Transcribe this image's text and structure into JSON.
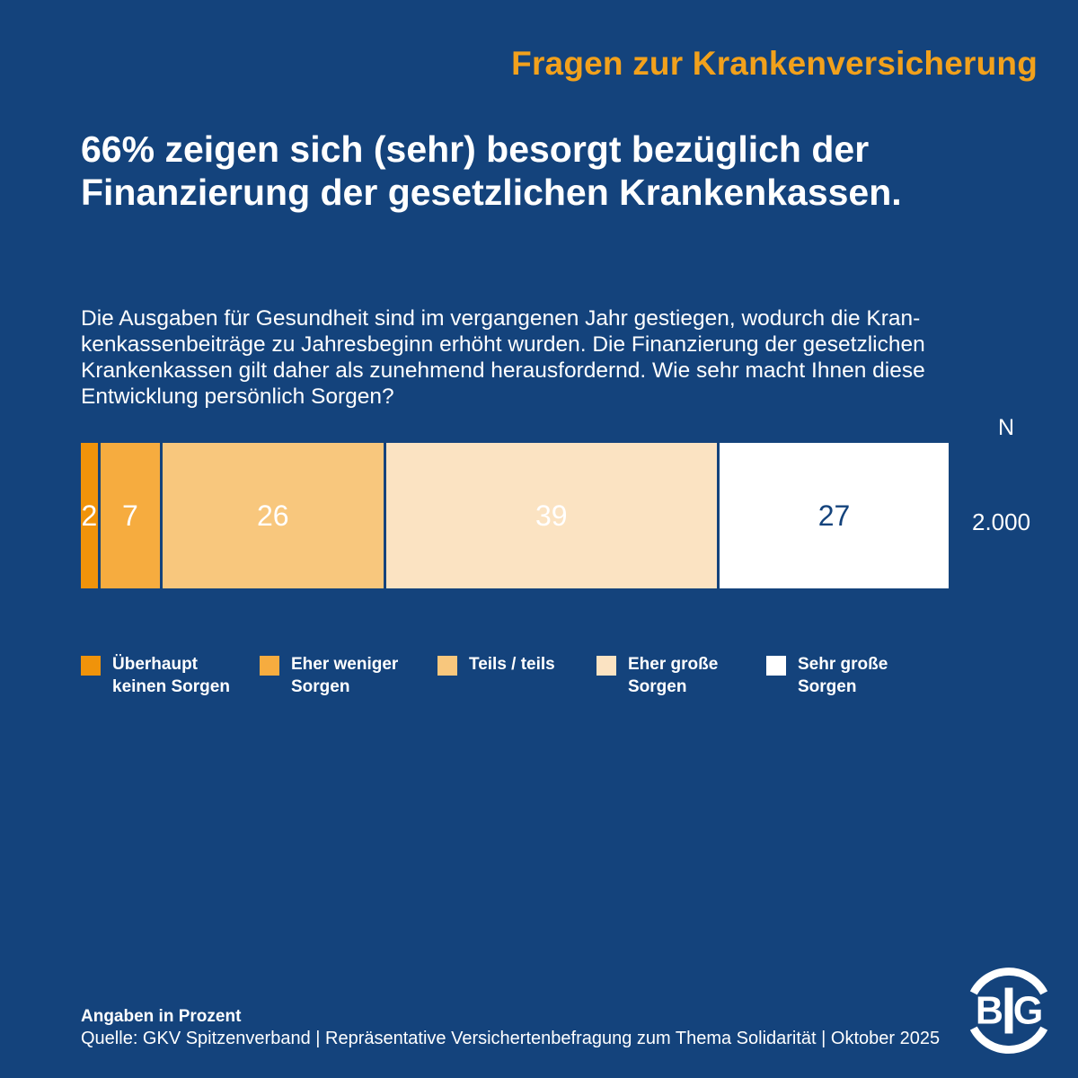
{
  "header": {
    "kicker": "Fragen zur Krankenversicherung",
    "headline": "66% zeigen sich (sehr) besorgt bezüglich der\nFinanzierung der gesetzlichen Krankenkassen."
  },
  "main": {
    "question": "Die Ausgaben für Gesundheit sind im vergangenen Jahr gestiegen, wodurch die Kran-\nkenkassenbeiträge zu Jahresbeginn erhöht wurden. Die Finanzierung der gesetzlichen\nKrankenkassen gilt daher als zunehmend herausfordernd. Wie sehr macht Ihnen diese\nEntwicklung persönlich Sorgen?"
  },
  "chart": {
    "n_label": "N",
    "n_value": "2.000"
  },
  "chart_data": {
    "type": "bar",
    "orientation": "horizontal-stacked",
    "title": "Wie sehr macht Ihnen diese Entwicklung persönlich Sorgen?",
    "unit": "Prozent",
    "n": "2.000",
    "legend_position": "bottom",
    "categories": [
      "Überhaupt keinen Sorgen",
      "Eher weniger Sorgen",
      "Teils / teils",
      "Eher große Sorgen",
      "Sehr große Sorgen"
    ],
    "values": [
      2,
      7,
      26,
      39,
      27
    ],
    "segments": [
      {
        "label": "Überhaupt\nkeinen Sorgen",
        "value": 2,
        "color": "#F0930A",
        "value_color": "#FFFFFF"
      },
      {
        "label": "Eher weniger\nSorgen",
        "value": 7,
        "color": "#F6AC3F",
        "value_color": "#FFFFFF"
      },
      {
        "label": "Teils / teils",
        "value": 26,
        "color": "#F8C77D",
        "value_color": "#FFFFFF"
      },
      {
        "label": "Eher große\nSorgen",
        "value": 39,
        "color": "#FBE3C2",
        "value_color": "#FFFFFF"
      },
      {
        "label": "Sehr große\nSorgen",
        "value": 27,
        "color": "#FFFFFF",
        "value_color": "#14437C"
      }
    ]
  },
  "footer": {
    "note": "Angaben in Prozent",
    "source": "Quelle: GKV Spitzenverband | Repräsentative Versichertenbefragung zum Thema Solidarität | Oktober 2025"
  },
  "logo": {
    "text": "BIG"
  },
  "colors": {
    "background": "#14437C",
    "accent_orange": "#F2A11C",
    "text_white": "#FFFFFF"
  }
}
